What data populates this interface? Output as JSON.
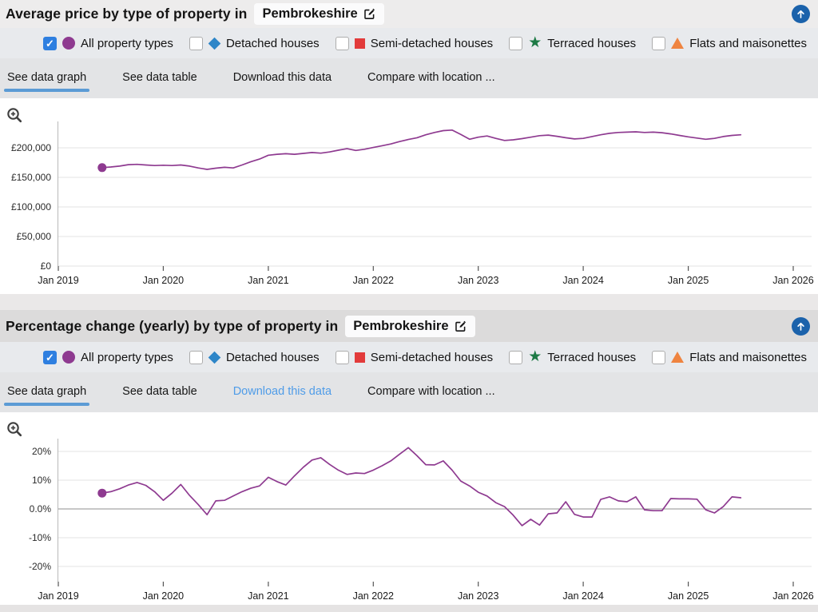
{
  "sections": [
    {
      "title_prefix": "Average price by type of property in",
      "location": "Pembrokeshire",
      "tabs": [
        {
          "label": "See data graph",
          "state": "active"
        },
        {
          "label": "See data table",
          "state": "normal"
        },
        {
          "label": "Download this data",
          "state": "normal"
        },
        {
          "label": "Compare with location ...",
          "state": "normal"
        }
      ]
    },
    {
      "title_prefix": "Percentage change (yearly) by type of property in",
      "location": "Pembrokeshire",
      "tabs": [
        {
          "label": "See data graph",
          "state": "active"
        },
        {
          "label": "See data table",
          "state": "normal"
        },
        {
          "label": "Download this data",
          "state": "link"
        },
        {
          "label": "Compare with location ...",
          "state": "normal"
        }
      ]
    }
  ],
  "legend": {
    "items": [
      {
        "label": "All property types",
        "marker": "circle",
        "color": "#8e3a90",
        "checked": true
      },
      {
        "label": "Detached houses",
        "marker": "diamond",
        "color": "#2e86c8",
        "checked": false
      },
      {
        "label": "Semi-detached houses",
        "marker": "square",
        "color": "#e23b3b",
        "checked": false
      },
      {
        "label": "Terraced houses",
        "marker": "star",
        "color": "#1d7a45",
        "checked": false
      },
      {
        "label": "Flats and maisonettes",
        "marker": "triangle",
        "color": "#ef8440",
        "checked": false
      }
    ]
  },
  "icons": {
    "check": "✓",
    "star": "★",
    "up_arrow": "up-arrow",
    "edit": "edit-pencil",
    "zoom": "zoom-in-magnifier"
  },
  "colors": {
    "line_purple": "#8e3a90",
    "active_tab_underline": "#5b9bd5",
    "link_blue": "#4f9ce8",
    "checkbox_blue": "#2e7fe0",
    "up_button_blue": "#1b62ab",
    "zero_line": "#8f8f8f",
    "grid_line": "#e3e3e3"
  },
  "chart_data": {
    "x_months": [
      "Jun 2019",
      "Jul 2019",
      "Aug 2019",
      "Sep 2019",
      "Oct 2019",
      "Nov 2019",
      "Dec 2019",
      "Jan 2020",
      "Feb 2020",
      "Mar 2020",
      "Apr 2020",
      "May 2020",
      "Jun 2020",
      "Jul 2020",
      "Aug 2020",
      "Sep 2020",
      "Oct 2020",
      "Nov 2020",
      "Dec 2020",
      "Jan 2021",
      "Feb 2021",
      "Mar 2021",
      "Apr 2021",
      "May 2021",
      "Jun 2021",
      "Jul 2021",
      "Aug 2021",
      "Sep 2021",
      "Oct 2021",
      "Nov 2021",
      "Dec 2021",
      "Jan 2022",
      "Feb 2022",
      "Mar 2022",
      "Apr 2022",
      "May 2022",
      "Jun 2022",
      "Jul 2022",
      "Aug 2022",
      "Sep 2022",
      "Oct 2022",
      "Nov 2022",
      "Dec 2022",
      "Jan 2023",
      "Feb 2023",
      "Mar 2023",
      "Apr 2023",
      "May 2023",
      "Jun 2023",
      "Jul 2023",
      "Aug 2023",
      "Sep 2023",
      "Oct 2023",
      "Nov 2023",
      "Dec 2023",
      "Jan 2024",
      "Feb 2024",
      "Mar 2024",
      "Apr 2024",
      "May 2024",
      "Jun 2024",
      "Jul 2024",
      "Aug 2024",
      "Sep 2024",
      "Oct 2024",
      "Nov 2024",
      "Dec 2024",
      "Jan 2025",
      "Feb 2025",
      "Mar 2025",
      "Apr 2025",
      "May 2025",
      "Jun 2025",
      "Jul 2025"
    ],
    "charts": [
      {
        "type": "line",
        "title": "Average price by type of property in Pembrokeshire",
        "legend_position": "top",
        "grid": true,
        "zero_line": false,
        "line_color": "#8e3a90",
        "ylim": [
          0,
          245000
        ],
        "yticks": {
          "labels": [
            "£0",
            "£50,000",
            "£100,000",
            "£150,000",
            "£200,000"
          ],
          "values": [
            0,
            50000,
            100000,
            150000,
            200000
          ]
        },
        "xticks": [
          "Jan 2019",
          "Jan 2020",
          "Jan 2021",
          "Jan 2022",
          "Jan 2023",
          "Jan 2024",
          "Jan 2025",
          "Jan 2026"
        ],
        "series": [
          {
            "name": "All property types",
            "values": [
              166500,
              167500,
              169000,
              171500,
              172000,
              171000,
              170000,
              170500,
              170000,
              171000,
              169000,
              166000,
              163500,
              165500,
              167000,
              166000,
              171000,
              176500,
              181000,
              187500,
              189000,
              190000,
              189000,
              190500,
              192000,
              191000,
              193000,
              196000,
              198500,
              195500,
              197500,
              200500,
              203500,
              206500,
              210500,
              214000,
              217000,
              222000,
              226000,
              229000,
              230000,
              222500,
              214500,
              218000,
              220000,
              216000,
              212500,
              213500,
              215500,
              218000,
              220500,
              221500,
              219500,
              217000,
              215000,
              216000,
              219000,
              222000,
              224500,
              226000,
              226500,
              227000,
              226000,
              226500,
              225500,
              223500,
              221000,
              218500,
              216500,
              214500,
              216000,
              219000,
              221000,
              222000
            ]
          }
        ]
      },
      {
        "type": "line",
        "title": "Percentage change (yearly) by type of property in Pembrokeshire",
        "legend_position": "top",
        "grid": true,
        "zero_line": true,
        "line_color": "#8e3a90",
        "ylim": [
          -25,
          25
        ],
        "yticks": {
          "labels": [
            "-20%",
            "-10%",
            "0.0%",
            "10%",
            "20%"
          ],
          "values": [
            -20,
            -10,
            0,
            10,
            20
          ]
        },
        "xticks": [
          "Jan 2019",
          "Jan 2020",
          "Jan 2021",
          "Jan 2022",
          "Jan 2023",
          "Jan 2024",
          "Jan 2025",
          "Jan 2026"
        ],
        "series": [
          {
            "name": "All property types",
            "values": [
              5.5,
              6.0,
              7.0,
              8.3,
              9.2,
              8.2,
              6.0,
              3.0,
              5.5,
              8.5,
              4.7,
              1.5,
              -2.0,
              2.8,
              3.0,
              4.5,
              6.0,
              7.2,
              8.0,
              11.0,
              9.5,
              8.3,
              11.5,
              14.5,
              17.0,
              17.8,
              15.5,
              13.5,
              12.0,
              12.5,
              12.3,
              13.5,
              15.0,
              16.7,
              19.0,
              21.3,
              18.5,
              15.4,
              15.3,
              16.7,
              13.5,
              9.7,
              8.0,
              5.8,
              4.5,
              2.2,
              0.8,
              -2.2,
              -5.8,
              -3.6,
              -5.6,
              -1.7,
              -1.4,
              2.5,
              -1.9,
              -2.8,
              -2.8,
              3.3,
              4.2,
              2.8,
              2.5,
              4.2,
              -0.3,
              -0.6,
              -0.6,
              3.6,
              3.5,
              3.5,
              3.4,
              -0.3,
              -1.4,
              0.8,
              4.2,
              3.9
            ]
          }
        ]
      }
    ]
  }
}
